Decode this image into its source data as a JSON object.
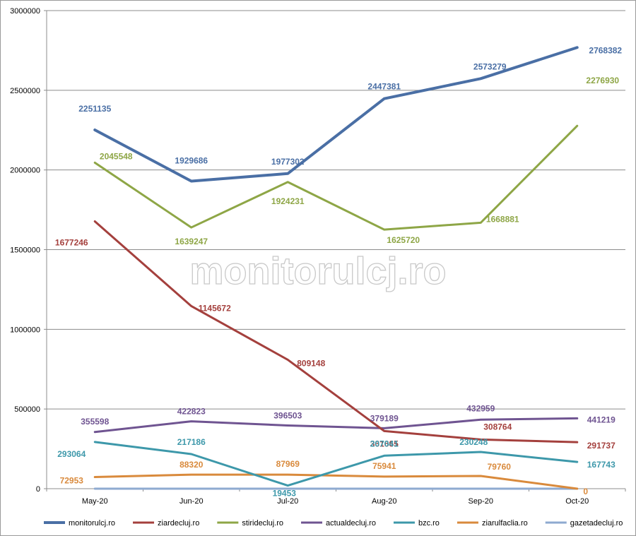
{
  "watermark": "monitorulcj.ro",
  "chart_data": {
    "type": "line",
    "title": "",
    "xlabel": "",
    "ylabel": "",
    "categories": [
      "May-20",
      "Jun-20",
      "Jul-20",
      "Aug-20",
      "Sep-20",
      "Oct-20"
    ],
    "ylim": [
      0,
      3000000
    ],
    "yticks": [
      0,
      500000,
      1000000,
      1500000,
      2000000,
      2500000,
      3000000
    ],
    "grid": true,
    "legend_position": "bottom",
    "series": [
      {
        "name": "monitorulcj.ro",
        "color": "#4a6fa5",
        "values": [
          2251135,
          1929686,
          1977302,
          2447381,
          2573279,
          2768382
        ]
      },
      {
        "name": "ziardecluj.ro",
        "color": "#a4403d",
        "values": [
          1677246,
          1145672,
          809148,
          361665,
          308764,
          291737
        ]
      },
      {
        "name": "stiridecluj.ro",
        "color": "#8ea646",
        "values": [
          2045548,
          1639247,
          1924231,
          1625720,
          1668881,
          2276930
        ]
      },
      {
        "name": "actualdecluj.ro",
        "color": "#6f5491",
        "values": [
          355598,
          422823,
          396503,
          379189,
          432959,
          441219
        ]
      },
      {
        "name": "bzc.ro",
        "color": "#3d98aa",
        "values": [
          293064,
          217186,
          19453,
          207041,
          230248,
          167743
        ]
      },
      {
        "name": "ziarulfaclia.ro",
        "color": "#d98a3c",
        "values": [
          72953,
          88320,
          87969,
          75941,
          79760,
          0
        ]
      },
      {
        "name": "gazetadecluj.ro",
        "color": "#8eaad0",
        "values": [
          0,
          0,
          0,
          0,
          0,
          0
        ]
      }
    ]
  }
}
